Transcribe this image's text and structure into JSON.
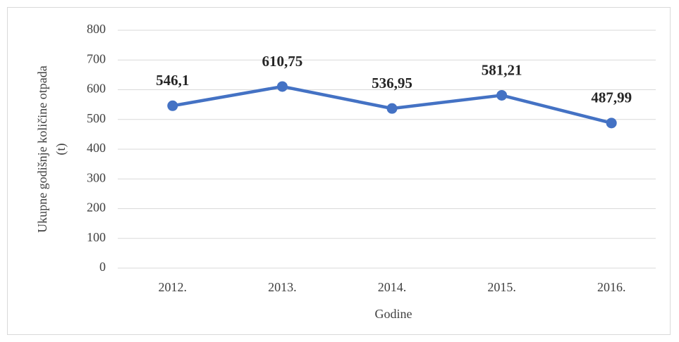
{
  "chart_data": {
    "type": "line",
    "ylabel": [
      "Ukupne godišnje količine otpada",
      "(t)"
    ],
    "xlabel": "Godine",
    "categories": [
      "2012.",
      "2013.",
      "2014.",
      "2015.",
      "2016."
    ],
    "series": [
      {
        "name": "Ukupne godišnje količine otpada",
        "color": "#4472c4",
        "values": [
          546.1,
          610.75,
          536.95,
          581.21,
          487.99
        ],
        "value_labels": [
          "546,1",
          "610,75",
          "536,95",
          "581,21",
          "487,99"
        ]
      }
    ],
    "ylim": [
      0,
      800
    ],
    "yticks": [
      0,
      100,
      200,
      300,
      400,
      500,
      600,
      700,
      800
    ],
    "grid": true
  }
}
